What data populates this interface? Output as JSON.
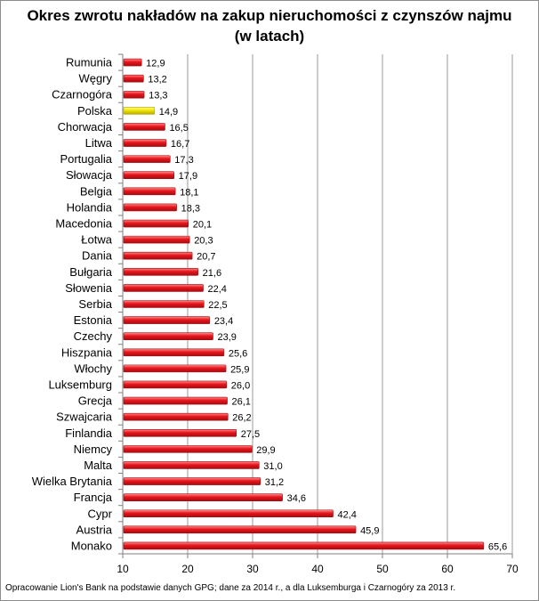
{
  "chart_data": {
    "type": "bar",
    "orientation": "horizontal",
    "title": "Okres zwrotu nakładów na zakup nieruchomości z czynszów najmu",
    "subtitle": "(w latach)",
    "categories": [
      "Rumunia",
      "Węgry",
      "Czarnogóra",
      "Polska",
      "Chorwacja",
      "Litwa",
      "Portugalia",
      "Słowacja",
      "Belgia",
      "Holandia",
      "Macedonia",
      "Łotwa",
      "Dania",
      "Bułgaria",
      "Słowenia",
      "Serbia",
      "Estonia",
      "Czechy",
      "Hiszpania",
      "Włochy",
      "Luksemburg",
      "Grecja",
      "Szwajcaria",
      "Finlandia",
      "Niemcy",
      "Malta",
      "Wielka Brytania",
      "Francja",
      "Cypr",
      "Austria",
      "Monako"
    ],
    "values": [
      12.9,
      13.2,
      13.3,
      14.9,
      16.5,
      16.7,
      17.3,
      17.9,
      18.1,
      18.3,
      20.1,
      20.3,
      20.7,
      21.6,
      22.4,
      22.5,
      23.4,
      23.9,
      25.6,
      25.9,
      26.0,
      26.1,
      26.2,
      27.5,
      29.9,
      31.0,
      31.2,
      34.6,
      42.4,
      45.9,
      65.6
    ],
    "value_labels": [
      "12,9",
      "13,2",
      "13,3",
      "14,9",
      "16,5",
      "16,7",
      "17,3",
      "17,9",
      "18,1",
      "18,3",
      "20,1",
      "20,3",
      "20,7",
      "21,6",
      "22,4",
      "22,5",
      "23,4",
      "23,9",
      "25,6",
      "25,9",
      "26,0",
      "26,1",
      "26,2",
      "27,5",
      "29,9",
      "31,0",
      "31,2",
      "34,6",
      "42,4",
      "45,9",
      "65,6"
    ],
    "highlight_category": "Polska",
    "xlim": [
      10,
      70
    ],
    "x_ticks": [
      10,
      20,
      30,
      40,
      50,
      60,
      70
    ],
    "grid": true,
    "legend": "none",
    "colors": {
      "bar": "#e8141b",
      "bar_dark": "#a30d12",
      "bar_light": "#ff8a8a",
      "highlight": "#f2e600",
      "highlight_dark": "#b5a800",
      "highlight_light": "#fffca0",
      "grid": "#9a9a9a",
      "axis": "#7f7f7f"
    }
  },
  "footnote": "Opracowanie Lion's Bank na podstawie danych GPG; dane za 2014 r., a dla Luksemburga i Czarnogóry za 2013 r."
}
